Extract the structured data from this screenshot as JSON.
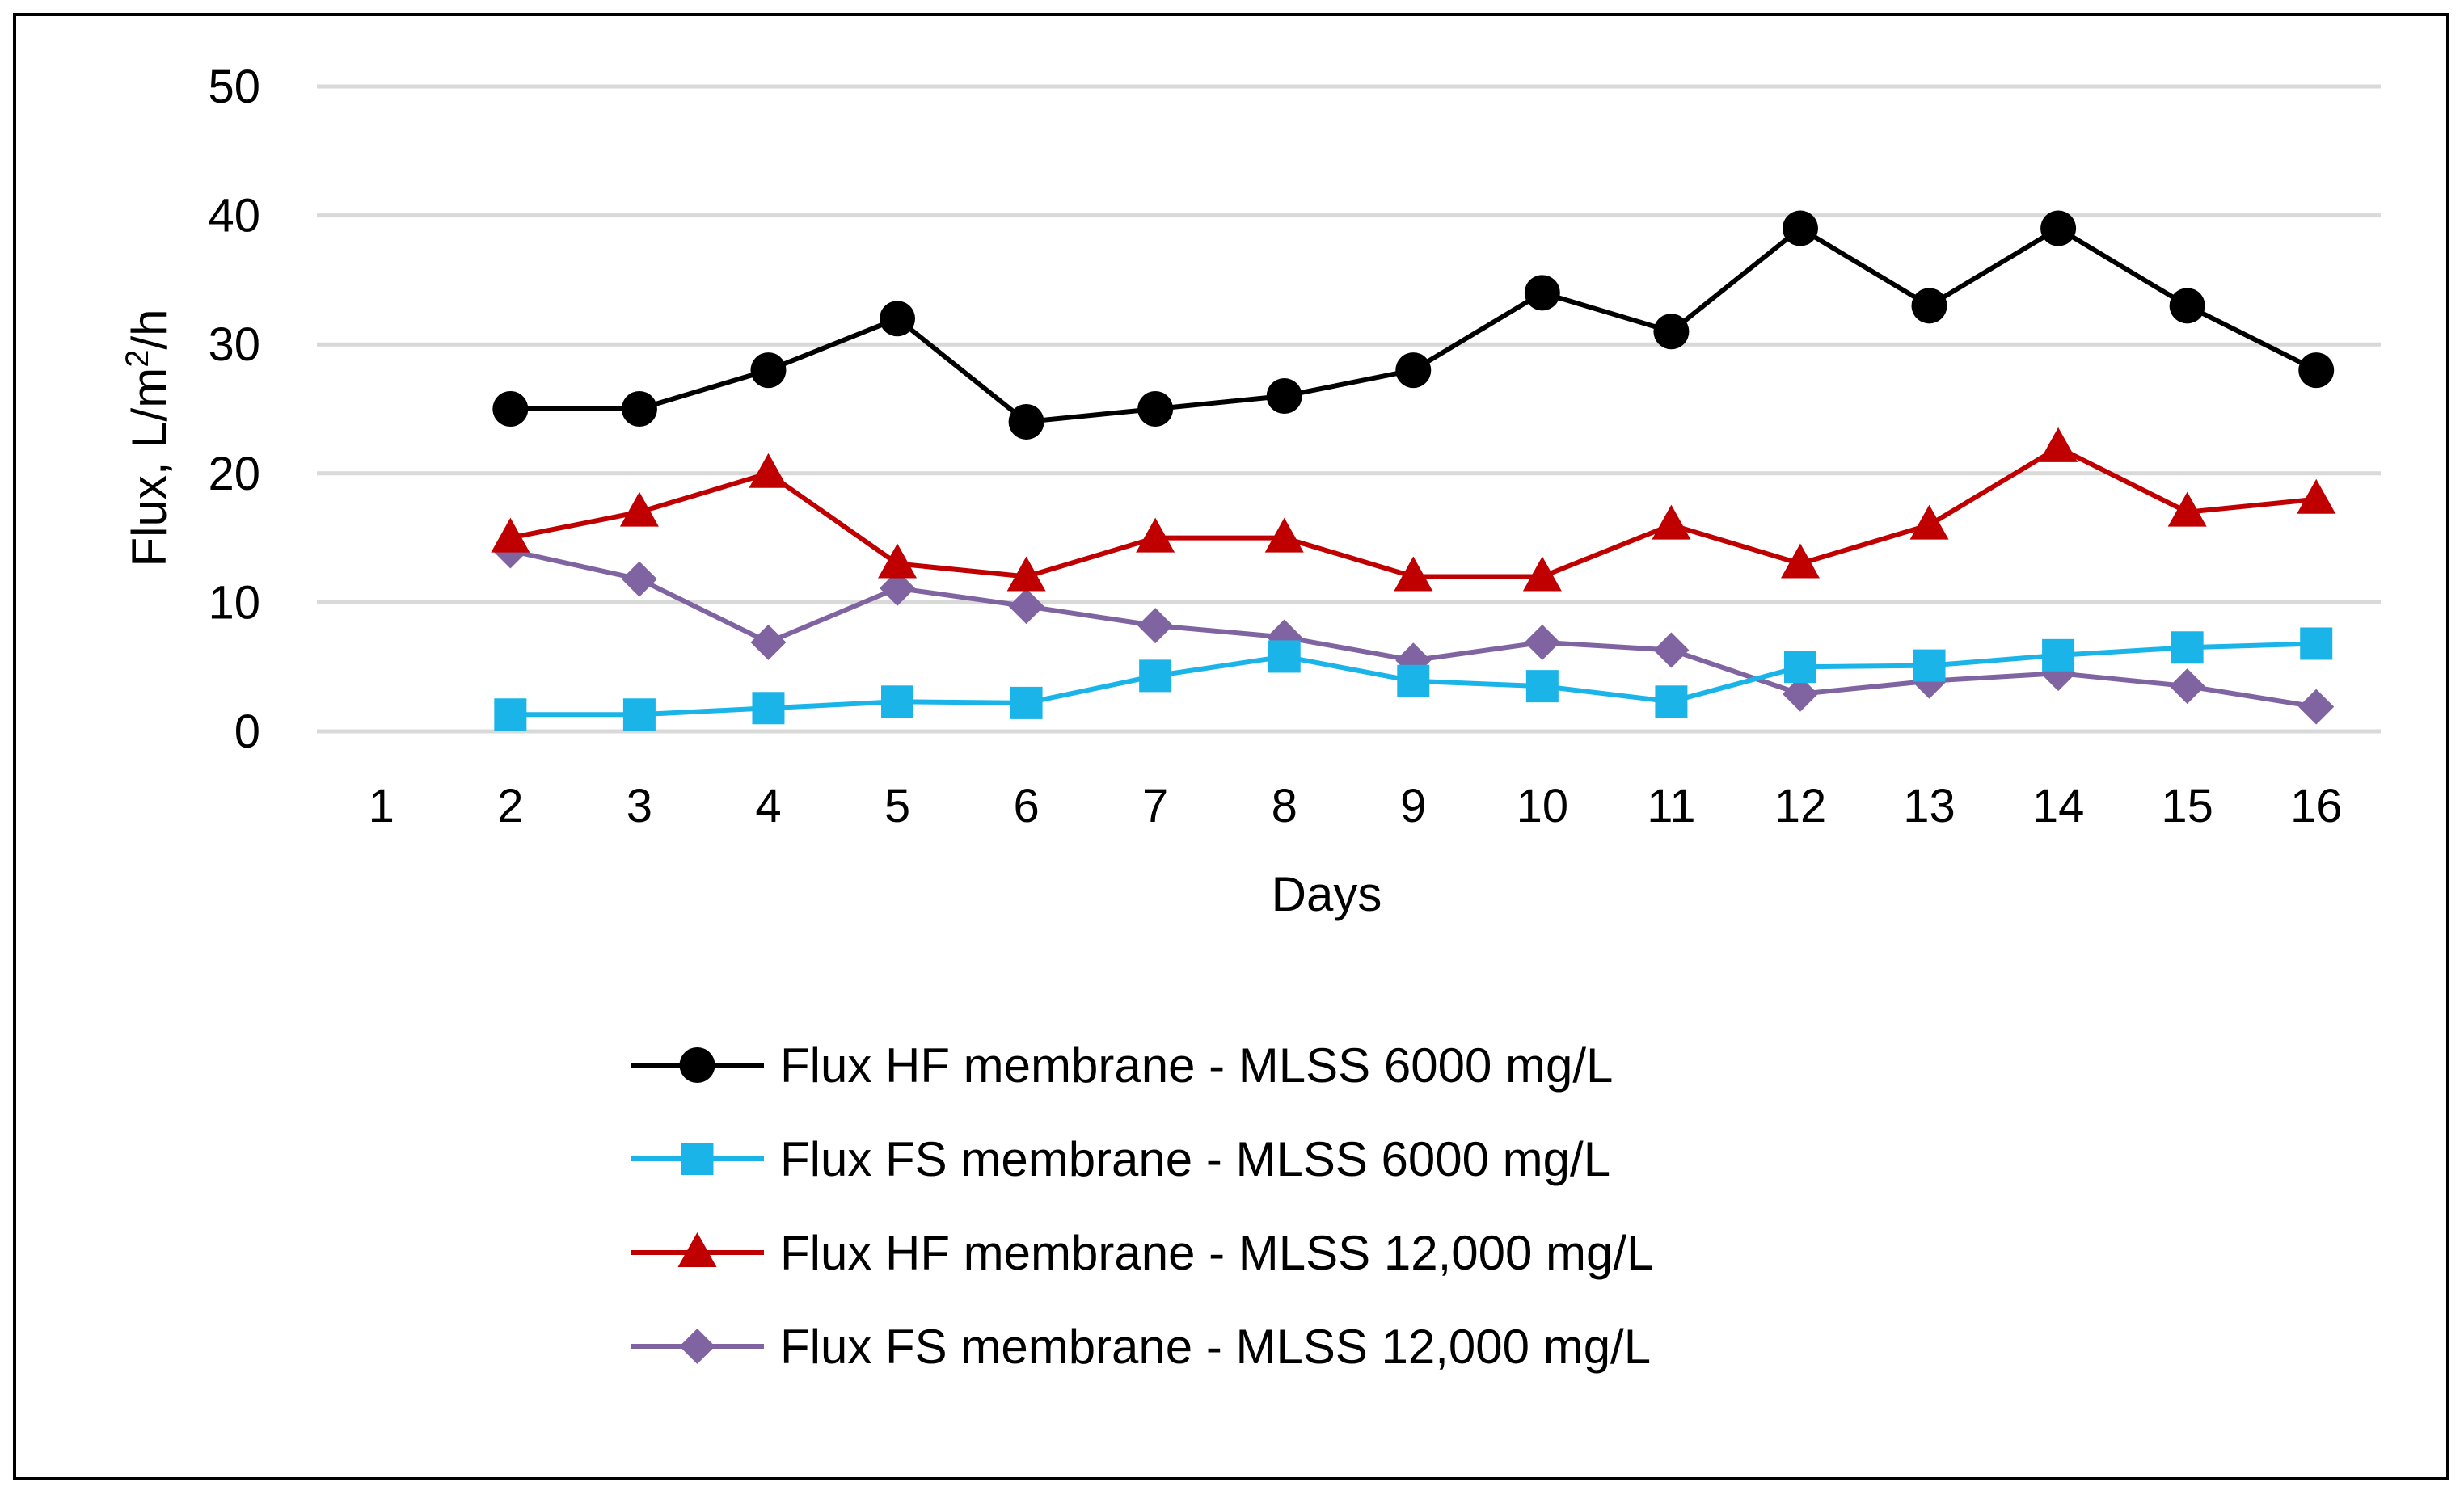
{
  "chart_data": {
    "type": "line",
    "title": "",
    "xlabel": "Days",
    "ylabel_main": "Flux,  L/m",
    "ylabel_sup": "2",
    "ylabel_tail": "/h",
    "categories": [
      "1",
      "2",
      "3",
      "4",
      "5",
      "6",
      "7",
      "8",
      "9",
      "10",
      "11",
      "12",
      "13",
      "14",
      "15",
      "16"
    ],
    "ylim": [
      0,
      50
    ],
    "yticks": [
      0,
      10,
      20,
      30,
      40,
      50
    ],
    "ytick_labels": [
      "0",
      "10",
      "20",
      "30",
      "40",
      "50"
    ],
    "grid": true,
    "legend_position": "bottom",
    "series": [
      {
        "name": "Flux HF membrane - MLSS 6000 mg/L",
        "color": "#000000",
        "marker": "circle",
        "values": [
          null,
          25,
          25,
          28,
          32,
          24,
          25,
          26,
          28,
          34,
          31,
          39,
          33,
          39,
          33,
          28
        ]
      },
      {
        "name": "Flux FS membrane - MLSS 6000 mg/L",
        "color": "#1AB4E8",
        "marker": "square",
        "values": [
          null,
          1.3,
          1.3,
          1.8,
          2.3,
          2.2,
          4.3,
          5.8,
          3.9,
          3.5,
          2.3,
          5.0,
          5.1,
          5.9,
          6.5,
          6.8
        ]
      },
      {
        "name": "Flux HF membrane - MLSS 12,000 mg/L",
        "color": "#C00000",
        "marker": "triangle",
        "values": [
          null,
          15,
          17,
          20,
          13,
          12,
          15,
          15,
          12,
          12,
          16,
          13,
          16,
          22,
          17,
          18
        ]
      },
      {
        "name": "Flux FS membrane - MLSS 12,000 mg/L",
        "color": "#8064A2",
        "marker": "diamond",
        "values": [
          null,
          14,
          11.8,
          6.9,
          11.1,
          9.7,
          8.2,
          7.3,
          5.5,
          6.9,
          6.3,
          2.9,
          3.9,
          4.5,
          3.5,
          1.9
        ]
      }
    ]
  }
}
